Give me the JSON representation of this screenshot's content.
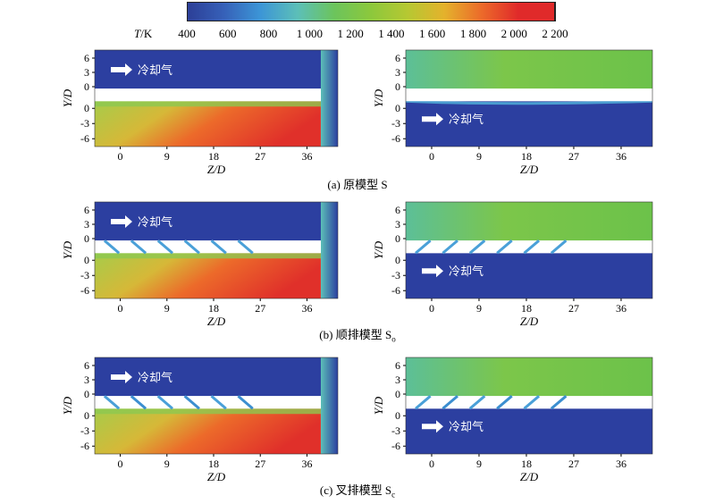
{
  "colorbar": {
    "title": "T/K",
    "ticks": [
      "400",
      "600",
      "800",
      "1 000",
      "1 200",
      "1 400",
      "1 600",
      "1 800",
      "2 000",
      "2 200"
    ],
    "colors": [
      "#2c3e96",
      "#3660b8",
      "#3c95d6",
      "#5cbfb8",
      "#6cc45c",
      "#8cc83c",
      "#b6c832",
      "#e4b22c",
      "#ec6a2a",
      "#e02a2a"
    ]
  },
  "axes": {
    "y_label": "Y/D",
    "x_label": "Z/D",
    "y_ticks": [
      "6",
      "3",
      "0",
      "0",
      "-3",
      "-6"
    ],
    "x_ticks": [
      "0",
      "9",
      "18",
      "27",
      "36"
    ]
  },
  "flow_label": "冷却气",
  "captions": [
    {
      "text": "(a) 原模型 S"
    },
    {
      "text": "(b) 顺排模型 S",
      "sub": "o"
    },
    {
      "text": "(c) 叉排模型 S",
      "sub": "c"
    }
  ],
  "rows": [
    {
      "left": "hot-below",
      "right": "cool-below",
      "holes": 0,
      "arrangement": "none"
    },
    {
      "left": "hot-below",
      "right": "cool-below",
      "holes": 6,
      "arrangement": "inline"
    },
    {
      "left": "hot-below",
      "right": "cool-below",
      "holes": 6,
      "arrangement": "staggered"
    }
  ]
}
